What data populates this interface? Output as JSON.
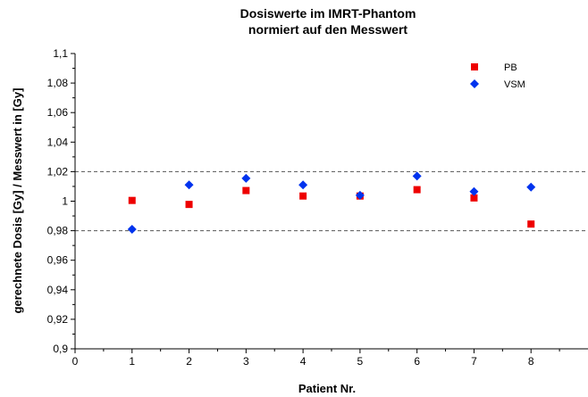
{
  "chart_data": {
    "type": "scatter",
    "title": "Dosiswerte im IMRT-Phantom",
    "subtitle": "normiert auf den Messwert",
    "xlabel": "Patient Nr.",
    "ylabel": "gerechnete Dosis [Gy] / Messwert in [Gy]",
    "xlim": [
      0,
      9
    ],
    "ylim": [
      0.9,
      1.1
    ],
    "x_ticks": [
      "0",
      "1",
      "2",
      "3",
      "4",
      "5",
      "6",
      "7",
      "8"
    ],
    "y_ticks": [
      "0,9",
      "0,92",
      "0,94",
      "0,96",
      "0,98",
      "1",
      "1,02",
      "1,04",
      "1,06",
      "1,08",
      "1,1"
    ],
    "reference_lines": [
      0.98,
      1.02
    ],
    "legend_position": "top-right",
    "series": [
      {
        "name": "PB",
        "marker": "square",
        "color": "#ee0000",
        "x": [
          1,
          2,
          3,
          4,
          5,
          6,
          7,
          8
        ],
        "y": [
          1.0005,
          0.9978,
          1.0072,
          1.0035,
          1.0035,
          1.0078,
          1.0022,
          0.9845
        ]
      },
      {
        "name": "VSM",
        "marker": "diamond",
        "color": "#0033ee",
        "x": [
          1,
          2,
          3,
          4,
          5,
          6,
          7,
          8
        ],
        "y": [
          0.981,
          1.011,
          1.0155,
          1.011,
          1.004,
          1.017,
          1.0065,
          1.0095
        ]
      }
    ]
  }
}
